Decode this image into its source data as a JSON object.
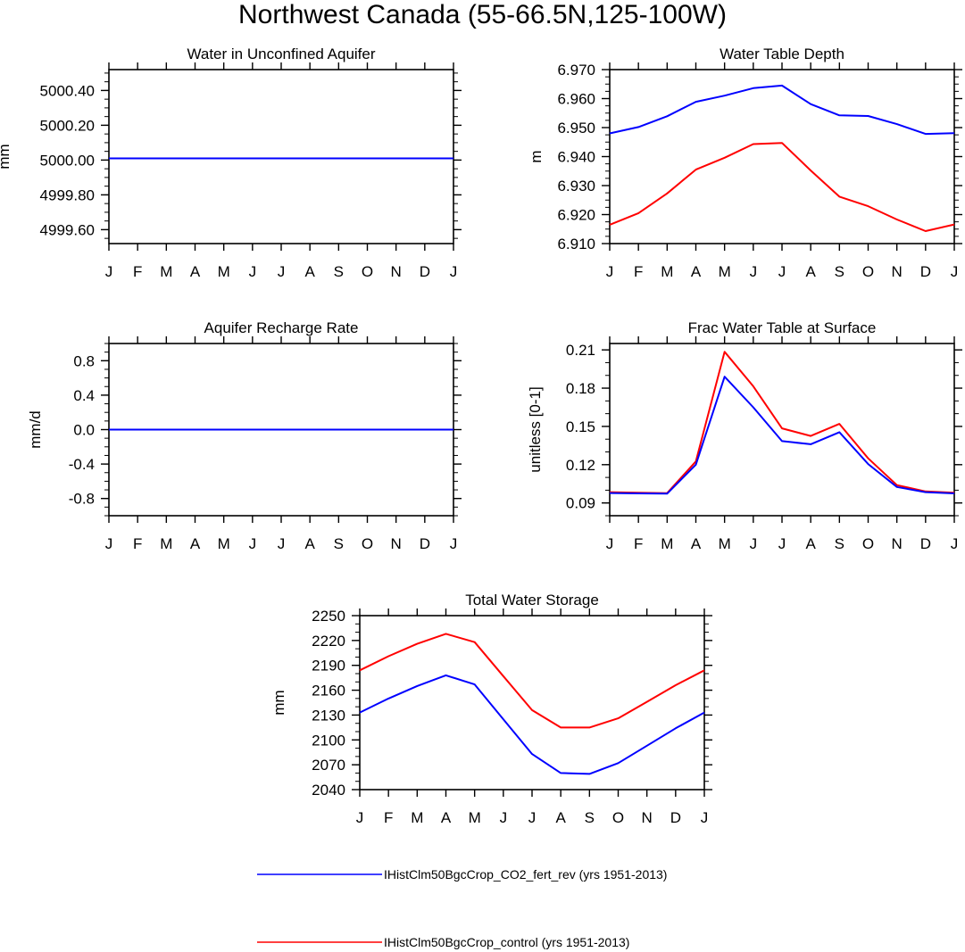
{
  "title": "Northwest Canada (55-66.5N,125-100W)",
  "months": [
    "J",
    "F",
    "M",
    "A",
    "M",
    "J",
    "J",
    "A",
    "S",
    "O",
    "N",
    "D",
    "J"
  ],
  "legend": [
    {
      "label": "IHistClm50BgcCrop_CO2_fert_rev (yrs 1951-2013)",
      "color": "#0000ff"
    },
    {
      "label": "IHistClm50BgcCrop_control (yrs 1951-2013)",
      "color": "#ff0000"
    }
  ],
  "chart_data": [
    {
      "type": "line",
      "title": "Water in Unconfined Aquifer",
      "ylabel": "mm",
      "ylim": [
        4999.52,
        5000.52
      ],
      "yticks": [
        4999.6,
        4999.8,
        5000.0,
        5000.2,
        5000.4
      ],
      "ytick_labels": [
        "4999.60",
        "4999.80",
        "5000.00",
        "5000.20",
        "5000.40"
      ],
      "yminor": 0.05,
      "x": [
        "J",
        "F",
        "M",
        "A",
        "M",
        "J",
        "J",
        "A",
        "S",
        "O",
        "N",
        "D",
        "J"
      ],
      "series": [
        {
          "color": "#ff0000",
          "values": [
            5000.01,
            5000.01,
            5000.01,
            5000.01,
            5000.01,
            5000.01,
            5000.01,
            5000.01,
            5000.01,
            5000.01,
            5000.01,
            5000.01,
            5000.01
          ]
        },
        {
          "color": "#0000ff",
          "values": [
            5000.01,
            5000.01,
            5000.01,
            5000.01,
            5000.01,
            5000.01,
            5000.01,
            5000.01,
            5000.01,
            5000.01,
            5000.01,
            5000.01,
            5000.01
          ]
        }
      ]
    },
    {
      "type": "line",
      "title": "Water Table Depth",
      "ylabel": "m",
      "ylim": [
        6.91,
        6.97
      ],
      "yticks": [
        6.91,
        6.92,
        6.93,
        6.94,
        6.95,
        6.96,
        6.97
      ],
      "ytick_labels": [
        "6.910",
        "6.920",
        "6.930",
        "6.940",
        "6.950",
        "6.960",
        "6.970"
      ],
      "yminor": 0.0025,
      "x": [
        "J",
        "F",
        "M",
        "A",
        "M",
        "J",
        "J",
        "A",
        "S",
        "O",
        "N",
        "D",
        "J"
      ],
      "series": [
        {
          "color": "#0000ff",
          "values": [
            6.948,
            6.9502,
            6.9539,
            6.9589,
            6.961,
            6.9636,
            6.9645,
            6.9581,
            6.9542,
            6.954,
            6.9512,
            6.9478,
            6.9481
          ]
        },
        {
          "color": "#ff0000",
          "values": [
            6.9165,
            6.9205,
            6.9273,
            6.9355,
            6.9396,
            6.9443,
            6.9447,
            6.9352,
            6.9262,
            6.9229,
            6.9183,
            6.9143,
            6.9166
          ]
        }
      ]
    },
    {
      "type": "line",
      "title": "Aquifer Recharge Rate",
      "ylabel": "mm/d",
      "ylim": [
        -1.0,
        1.0
      ],
      "yticks": [
        -0.8,
        -0.4,
        0.0,
        0.4,
        0.8
      ],
      "ytick_labels": [
        "-0.8",
        "-0.4",
        "0.0",
        "0.4",
        "0.8"
      ],
      "yminor": 0.1,
      "x": [
        "J",
        "F",
        "M",
        "A",
        "M",
        "J",
        "J",
        "A",
        "S",
        "O",
        "N",
        "D",
        "J"
      ],
      "series": [
        {
          "color": "#ff0000",
          "values": [
            0,
            0,
            0,
            0,
            0,
            0,
            0,
            0,
            0,
            0,
            0,
            0,
            0
          ]
        },
        {
          "color": "#0000ff",
          "values": [
            0,
            0,
            0,
            0,
            0,
            0,
            0,
            0,
            0,
            0,
            0,
            0,
            0
          ]
        }
      ]
    },
    {
      "type": "line",
      "title": "Frac Water Table at Surface",
      "ylabel": "unitless [0-1]",
      "ylim": [
        0.08,
        0.215
      ],
      "yticks": [
        0.09,
        0.12,
        0.15,
        0.18,
        0.21
      ],
      "ytick_labels": [
        "0.09",
        "0.12",
        "0.15",
        "0.18",
        "0.21"
      ],
      "yminor": 0.01,
      "x": [
        "J",
        "F",
        "M",
        "A",
        "M",
        "J",
        "J",
        "A",
        "S",
        "O",
        "N",
        "D",
        "J"
      ],
      "series": [
        {
          "color": "#ff0000",
          "values": [
            0.0985,
            0.098,
            0.0977,
            0.1225,
            0.2085,
            0.1815,
            0.1485,
            0.1425,
            0.152,
            0.125,
            0.104,
            0.099,
            0.098
          ]
        },
        {
          "color": "#0000ff",
          "values": [
            0.0978,
            0.0975,
            0.0973,
            0.12,
            0.189,
            0.165,
            0.1385,
            0.136,
            0.1455,
            0.1205,
            0.1025,
            0.0985,
            0.0975
          ]
        }
      ]
    },
    {
      "type": "line",
      "title": "Total Water Storage",
      "ylabel": "mm",
      "ylim": [
        2040,
        2250
      ],
      "yticks": [
        2040,
        2070,
        2100,
        2130,
        2160,
        2190,
        2220,
        2250
      ],
      "ytick_labels": [
        "2040",
        "2070",
        "2100",
        "2130",
        "2160",
        "2190",
        "2220",
        "2250"
      ],
      "yminor": 10,
      "x": [
        "J",
        "F",
        "M",
        "A",
        "M",
        "J",
        "J",
        "A",
        "S",
        "O",
        "N",
        "D",
        "J"
      ],
      "series": [
        {
          "color": "#ff0000",
          "values": [
            2184,
            2201,
            2216,
            2228,
            2218,
            2177,
            2136,
            2115,
            2115,
            2126,
            2146,
            2166,
            2184
          ]
        },
        {
          "color": "#0000ff",
          "values": [
            2133,
            2150,
            2165,
            2178,
            2167,
            2125,
            2083,
            2060,
            2059,
            2072,
            2093,
            2114,
            2133
          ]
        }
      ]
    }
  ]
}
